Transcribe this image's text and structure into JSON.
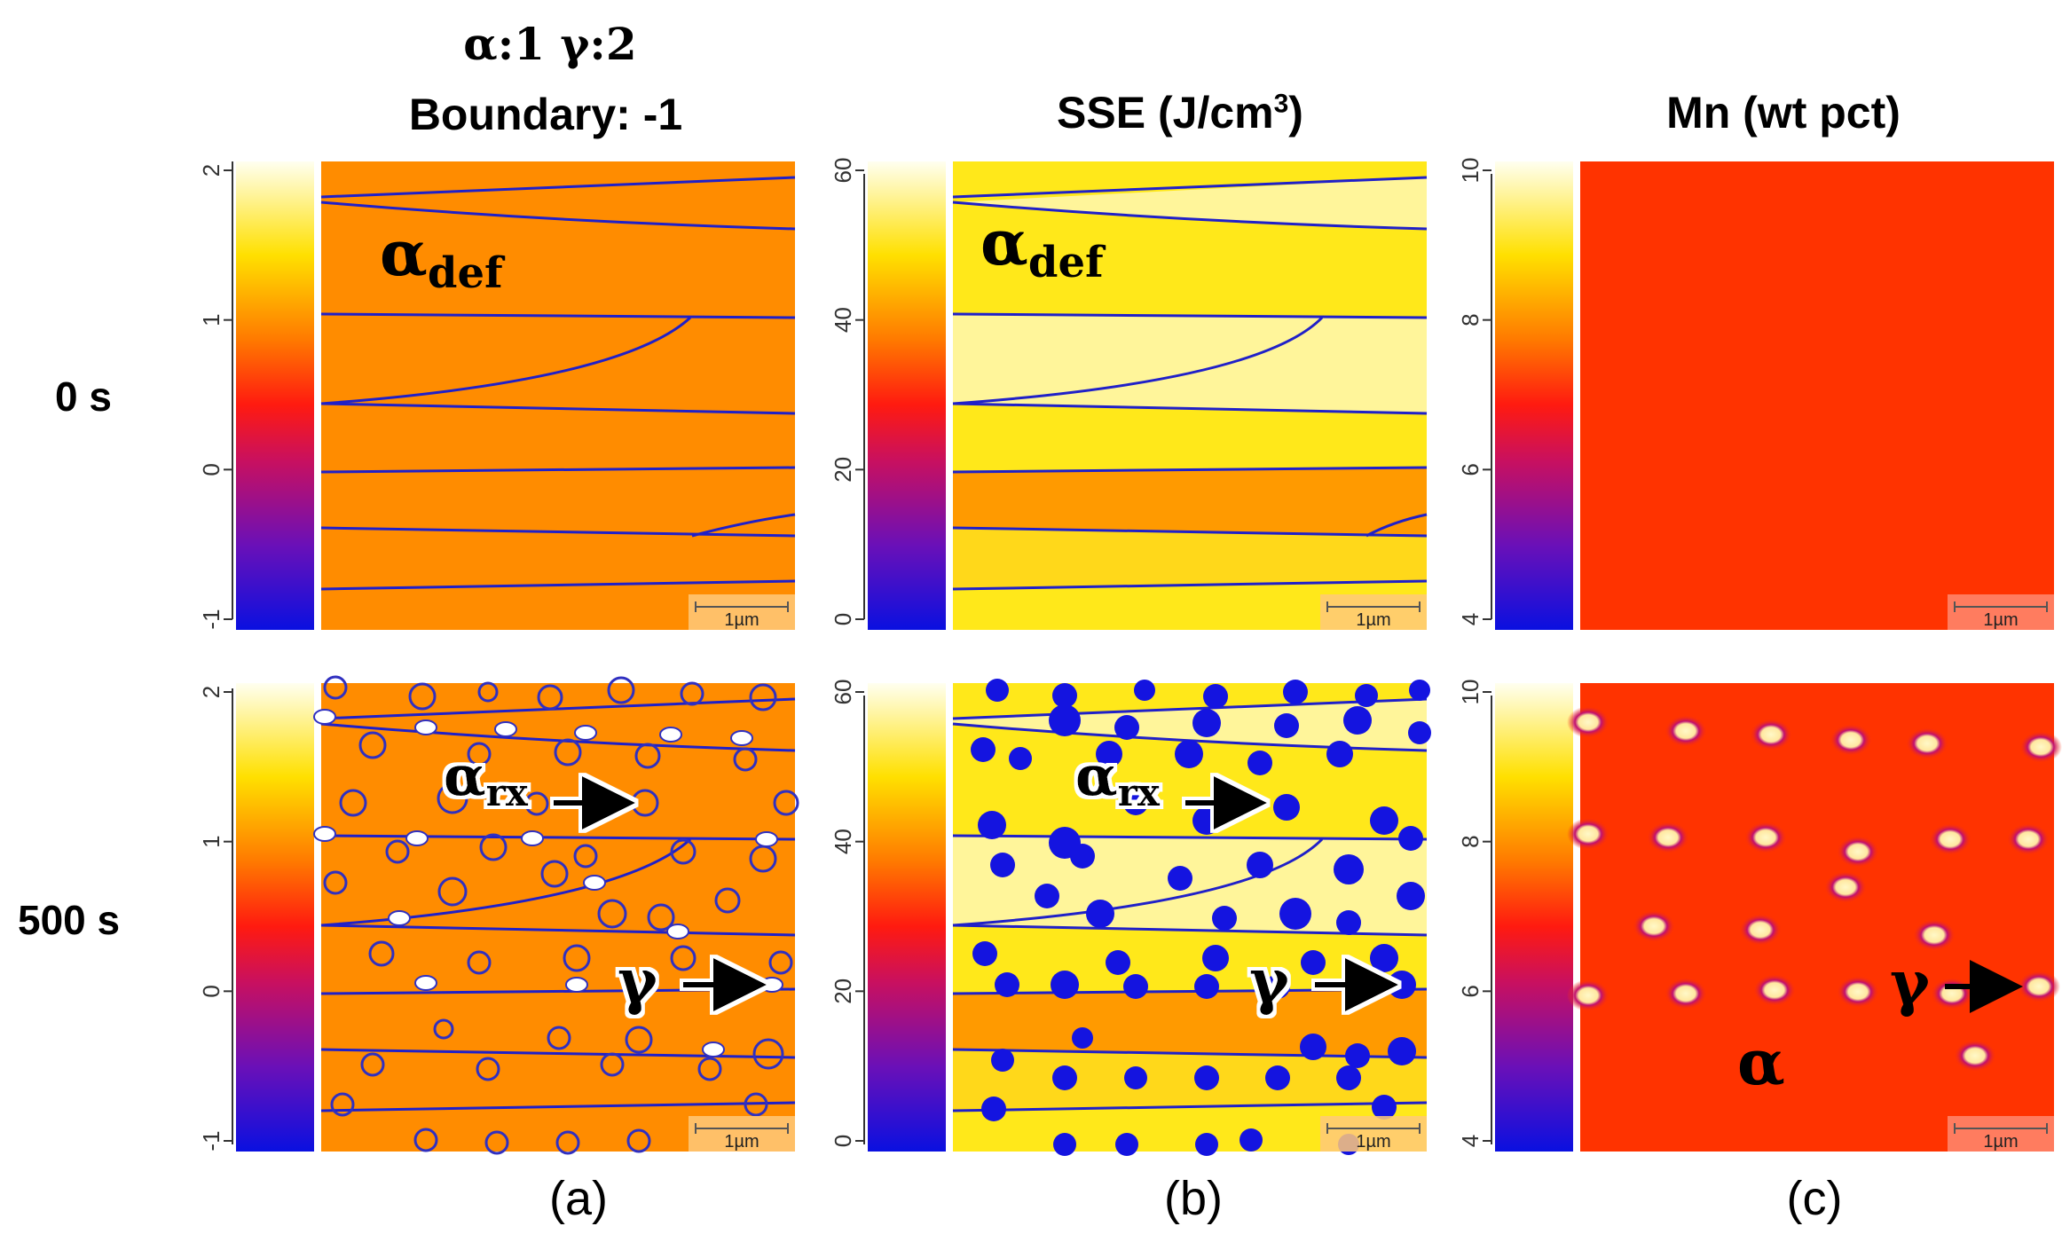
{
  "headers": {
    "legend_line": "α:1   γ:2",
    "col_a": "Boundary: -1",
    "col_b_prefix": "SSE (J/cm",
    "col_b_sup": "3",
    "col_b_suffix": ")",
    "col_c": "Mn (wt pct)"
  },
  "rows": {
    "top": "0 s",
    "bottom": "500 s"
  },
  "sublabels": {
    "a": "(a)",
    "b": "(b)",
    "c": "(c)"
  },
  "colorbars": {
    "a_ticks": [
      "2",
      "1",
      "0",
      "-1"
    ],
    "b_ticks": [
      "60",
      "40",
      "20",
      "0"
    ],
    "c_ticks": [
      "10",
      "8",
      "6",
      "4"
    ]
  },
  "scalebar": "1µm",
  "annotations": {
    "alpha": "α",
    "gamma": "γ",
    "def_sub": "def",
    "rx_sub": "rx"
  },
  "colors": {
    "orange": "#FF8C00",
    "yellow": "#FFE81A",
    "lightyellow": "#FFF59A",
    "red": "#FF3300",
    "boundary": "#2020C8",
    "nucleus": "#1414E0"
  }
}
